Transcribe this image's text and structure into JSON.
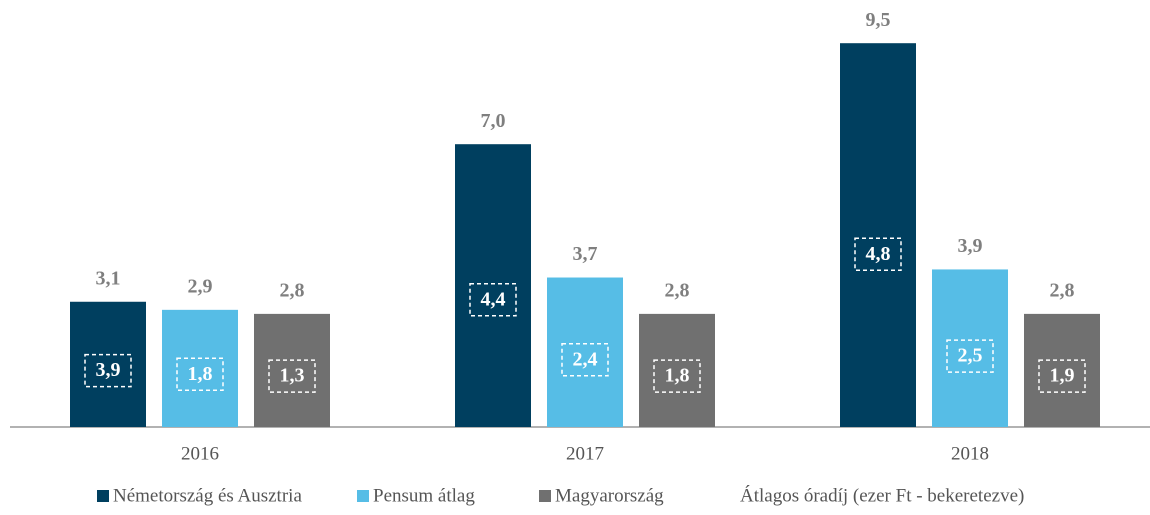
{
  "chart_data": {
    "type": "bar",
    "categories": [
      "2016",
      "2017",
      "2018"
    ],
    "series": [
      {
        "name": "Németország és Ausztria",
        "color": "#003f5f",
        "values": [
          3.1,
          7.0,
          9.5
        ],
        "value_labels": [
          "3,1",
          "7,0",
          "9,5"
        ],
        "boxed_values": [
          3.9,
          4.4,
          4.8
        ],
        "boxed_labels": [
          "3,9",
          "4,4",
          "4,8"
        ]
      },
      {
        "name": "Pensum átlag",
        "color": "#56bde6",
        "values": [
          2.9,
          3.7,
          3.9
        ],
        "value_labels": [
          "2,9",
          "3,7",
          "3,9"
        ],
        "boxed_values": [
          1.8,
          2.4,
          2.5
        ],
        "boxed_labels": [
          "1,8",
          "2,4",
          "2,5"
        ]
      },
      {
        "name": "Magyarország",
        "color": "#707070",
        "values": [
          2.8,
          2.8,
          2.8
        ],
        "value_labels": [
          "2,8",
          "2,8",
          "2,8"
        ],
        "boxed_values": [
          1.3,
          1.8,
          1.9
        ],
        "boxed_labels": [
          "1,3",
          "1,8",
          "1,9"
        ]
      }
    ],
    "annotation": "Átlagos óradíj (ezer Ft - bekeretezve)",
    "ylim": [
      0,
      10
    ]
  }
}
